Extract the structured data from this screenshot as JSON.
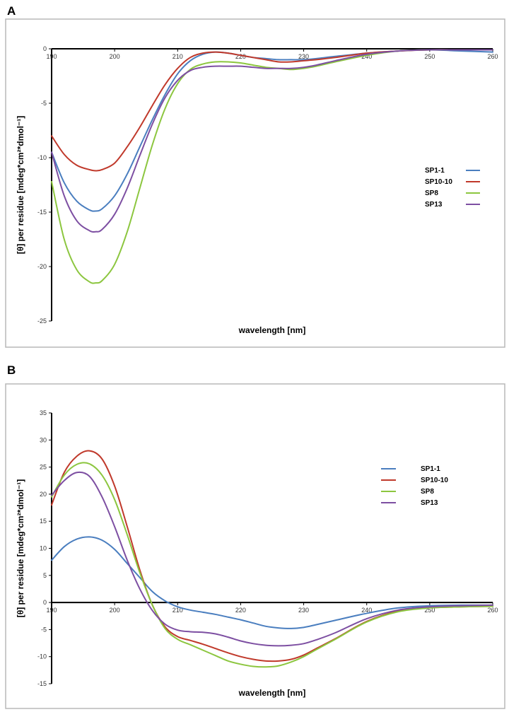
{
  "colors": {
    "SP1-1": "#4a7ebf",
    "SP10-10": "#c0392b",
    "SP8": "#8cc63f",
    "SP13": "#7d4fa2"
  },
  "chart_data": [
    {
      "panel": "A",
      "type": "line",
      "xlabel": "wavelength [nm]",
      "ylabel_prefix": "[θ]",
      "ylabel": "per residue [mdeg*cm²*dmol⁻¹]",
      "xlim": [
        190,
        260
      ],
      "ylim": [
        -25,
        0
      ],
      "x_ticks": [
        190,
        200,
        210,
        220,
        230,
        240,
        250,
        260
      ],
      "y_ticks": [
        0,
        -5,
        -10,
        -15,
        -20,
        -25
      ],
      "grid": false,
      "legend_position": "right",
      "legend": [
        "SP1-1",
        "SP10-10",
        "SP8",
        "SP13"
      ],
      "series": [
        {
          "name": "SP1-1",
          "x": [
            190,
            192,
            194,
            196,
            197,
            198,
            200,
            202,
            204,
            206,
            208,
            210,
            212,
            214,
            216,
            218,
            220,
            222,
            224,
            226,
            228,
            230,
            232,
            235,
            240,
            245,
            250,
            255,
            260
          ],
          "y": [
            -9.5,
            -12.3,
            -14.0,
            -14.8,
            -14.9,
            -14.7,
            -13.5,
            -11.5,
            -9.0,
            -6.5,
            -4.2,
            -2.3,
            -1.1,
            -0.5,
            -0.3,
            -0.4,
            -0.6,
            -0.8,
            -0.9,
            -1.0,
            -1.0,
            -1.0,
            -0.9,
            -0.7,
            -0.4,
            -0.2,
            -0.1,
            -0.2,
            -0.3
          ]
        },
        {
          "name": "SP10-10",
          "x": [
            190,
            192,
            194,
            196,
            197,
            198,
            200,
            202,
            204,
            206,
            208,
            210,
            212,
            214,
            216,
            218,
            220,
            222,
            224,
            226,
            228,
            230,
            232,
            235,
            240,
            245,
            250,
            255,
            260
          ],
          "y": [
            -8.0,
            -9.7,
            -10.7,
            -11.1,
            -11.2,
            -11.1,
            -10.5,
            -9.0,
            -7.2,
            -5.2,
            -3.3,
            -1.8,
            -0.8,
            -0.4,
            -0.3,
            -0.4,
            -0.6,
            -0.8,
            -1.0,
            -1.2,
            -1.2,
            -1.1,
            -1.0,
            -0.8,
            -0.4,
            -0.2,
            -0.1,
            -0.1,
            -0.1
          ]
        },
        {
          "name": "SP8",
          "x": [
            190,
            192,
            194,
            196,
            197,
            198,
            200,
            202,
            204,
            206,
            208,
            210,
            212,
            214,
            216,
            218,
            220,
            222,
            224,
            226,
            228,
            230,
            232,
            235,
            240,
            245,
            250,
            255,
            260
          ],
          "y": [
            -12.2,
            -17.5,
            -20.3,
            -21.4,
            -21.5,
            -21.3,
            -19.8,
            -16.8,
            -12.8,
            -8.8,
            -5.5,
            -3.2,
            -1.9,
            -1.4,
            -1.2,
            -1.2,
            -1.3,
            -1.5,
            -1.7,
            -1.8,
            -1.9,
            -1.8,
            -1.6,
            -1.2,
            -0.6,
            -0.2,
            -0.1,
            -0.1,
            -0.1
          ]
        },
        {
          "name": "SP13",
          "x": [
            190,
            192,
            194,
            196,
            197,
            198,
            200,
            202,
            204,
            206,
            208,
            210,
            212,
            214,
            216,
            218,
            220,
            222,
            224,
            226,
            228,
            230,
            232,
            235,
            240,
            245,
            250,
            255,
            260
          ],
          "y": [
            -9.5,
            -13.5,
            -15.8,
            -16.7,
            -16.8,
            -16.6,
            -15.2,
            -12.8,
            -9.8,
            -6.9,
            -4.5,
            -2.9,
            -2.0,
            -1.7,
            -1.6,
            -1.6,
            -1.6,
            -1.7,
            -1.8,
            -1.8,
            -1.8,
            -1.7,
            -1.5,
            -1.1,
            -0.5,
            -0.2,
            -0.1,
            -0.1,
            -0.1
          ]
        }
      ]
    },
    {
      "panel": "B",
      "type": "line",
      "xlabel": "wavelength [nm]",
      "ylabel_prefix": "[θ]",
      "ylabel": "per residue [mdeg*cm²*dmol⁻¹]",
      "xlim": [
        190,
        260
      ],
      "ylim": [
        -15,
        35
      ],
      "x_ticks": [
        190,
        200,
        210,
        220,
        230,
        240,
        250,
        260
      ],
      "y_ticks": [
        35,
        30,
        25,
        20,
        15,
        10,
        5,
        0,
        -5,
        -10,
        -15
      ],
      "grid": false,
      "legend_position": "right",
      "legend": [
        "SP1-1",
        "SP10-10",
        "SP8",
        "SP13"
      ],
      "series": [
        {
          "name": "SP1-1",
          "x": [
            190,
            192,
            194,
            196,
            198,
            200,
            202,
            204,
            206,
            208,
            210,
            212,
            214,
            216,
            218,
            220,
            222,
            224,
            226,
            228,
            230,
            232,
            235,
            240,
            245,
            250,
            255,
            260
          ],
          "y": [
            7.8,
            10.3,
            11.7,
            12.1,
            11.5,
            9.8,
            7.2,
            4.6,
            2.0,
            0.3,
            -0.8,
            -1.4,
            -1.8,
            -2.2,
            -2.7,
            -3.2,
            -3.8,
            -4.4,
            -4.7,
            -4.8,
            -4.6,
            -4.1,
            -3.3,
            -2.0,
            -1.0,
            -0.6,
            -0.5,
            -0.5
          ]
        },
        {
          "name": "SP10-10",
          "x": [
            190,
            192,
            194,
            196,
            198,
            200,
            202,
            204,
            206,
            208,
            210,
            212,
            214,
            216,
            218,
            220,
            222,
            224,
            226,
            228,
            230,
            232,
            235,
            240,
            245,
            250,
            255,
            260
          ],
          "y": [
            18.0,
            24.0,
            27.0,
            28.0,
            26.5,
            21.5,
            14.0,
            6.0,
            -0.5,
            -4.5,
            -6.3,
            -7.0,
            -7.7,
            -8.5,
            -9.3,
            -10.0,
            -10.5,
            -10.8,
            -10.8,
            -10.5,
            -9.7,
            -8.5,
            -6.7,
            -3.5,
            -1.6,
            -1.0,
            -0.8,
            -0.7
          ]
        },
        {
          "name": "SP8",
          "x": [
            190,
            192,
            194,
            196,
            198,
            200,
            202,
            204,
            206,
            208,
            210,
            212,
            214,
            216,
            218,
            220,
            222,
            224,
            226,
            228,
            230,
            232,
            235,
            240,
            245,
            250,
            255,
            260
          ],
          "y": [
            19.5,
            23.5,
            25.5,
            25.6,
            23.5,
            19.0,
            12.5,
            5.5,
            -0.5,
            -4.8,
            -6.8,
            -7.8,
            -8.8,
            -9.8,
            -10.8,
            -11.4,
            -11.8,
            -11.9,
            -11.7,
            -11.0,
            -10.0,
            -8.7,
            -6.8,
            -3.6,
            -1.7,
            -1.0,
            -0.8,
            -0.7
          ]
        },
        {
          "name": "SP13",
          "x": [
            190,
            192,
            194,
            196,
            198,
            200,
            202,
            204,
            206,
            208,
            210,
            212,
            214,
            216,
            218,
            220,
            222,
            224,
            226,
            228,
            230,
            232,
            235,
            240,
            245,
            250,
            255,
            260
          ],
          "y": [
            19.8,
            22.5,
            24.0,
            23.3,
            19.5,
            14.0,
            7.8,
            2.5,
            -1.5,
            -4.0,
            -5.1,
            -5.4,
            -5.5,
            -5.8,
            -6.4,
            -7.1,
            -7.6,
            -7.9,
            -8.0,
            -7.9,
            -7.6,
            -6.9,
            -5.6,
            -3.0,
            -1.4,
            -0.8,
            -0.6,
            -0.5
          ]
        }
      ]
    }
  ]
}
